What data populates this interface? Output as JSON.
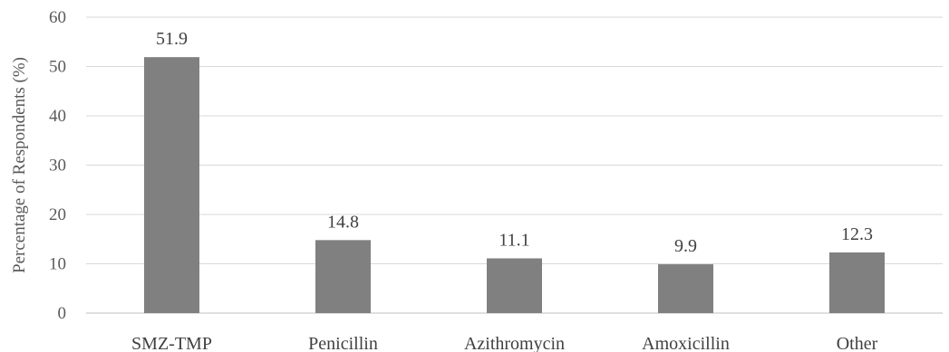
{
  "chart_data": {
    "type": "bar",
    "title": "",
    "xlabel": "",
    "ylabel": "Percentage of Respondents (%)",
    "categories": [
      "SMZ-TMP",
      "Penicillin",
      "Azithromycin",
      "Amoxicillin",
      "Other"
    ],
    "values": [
      51.9,
      14.8,
      11.1,
      9.9,
      12.3
    ],
    "data_labels": [
      "51.9",
      "14.8",
      "11.1",
      "9.9",
      "12.3"
    ],
    "ylim": [
      0,
      60
    ],
    "yticks": [
      0,
      10,
      20,
      30,
      40,
      50,
      60
    ],
    "grid": true,
    "legend": "none",
    "colors": {
      "bar": "#808080",
      "grid": "#d9d9d9",
      "axis": "#bfbfbf"
    }
  }
}
